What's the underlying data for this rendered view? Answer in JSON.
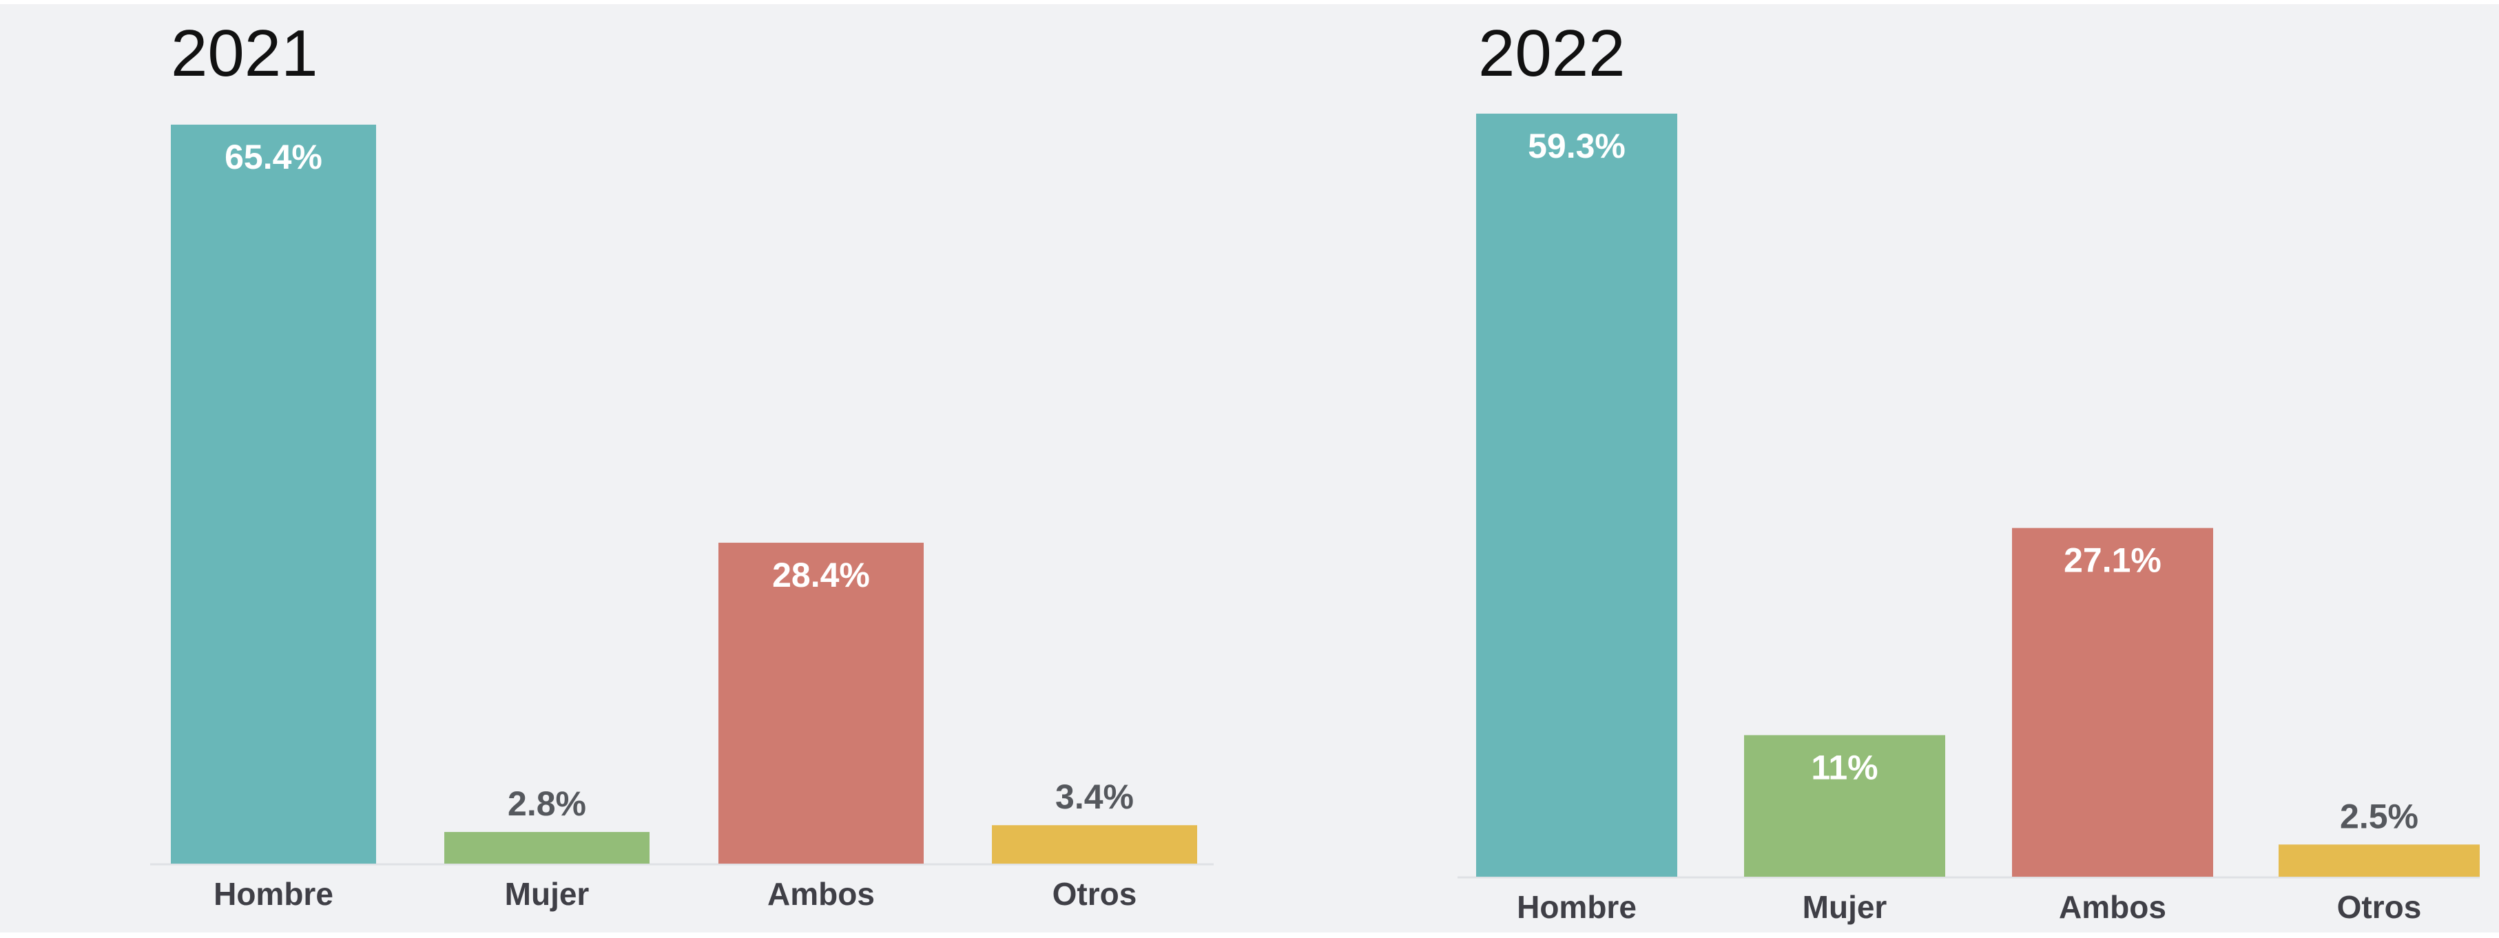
{
  "colors": {
    "Hombre": "#69b7b8",
    "Mujer": "#93bd78",
    "Ambos": "#cf7b70",
    "Otros": "#e5bb4f",
    "background": "#f1f2f4"
  },
  "chart_data": [
    {
      "type": "bar",
      "title": "2021",
      "categories": [
        "Hombre",
        "Mujer",
        "Ambos",
        "Otros"
      ],
      "values": [
        65.4,
        2.8,
        28.4,
        3.4
      ],
      "value_labels": [
        "65.4%",
        "2.8%",
        "28.4%",
        "3.4%"
      ],
      "ylim": [
        0,
        65.4
      ],
      "grid": false,
      "legend": "none"
    },
    {
      "type": "bar",
      "title": "2022",
      "categories": [
        "Hombre",
        "Mujer",
        "Ambos",
        "Otros"
      ],
      "values": [
        59.3,
        11,
        27.1,
        2.5
      ],
      "value_labels": [
        "59.3%",
        "11%",
        "27.1%",
        "2.5%"
      ],
      "ylim": [
        0,
        59.3
      ],
      "grid": false,
      "legend": "none"
    }
  ]
}
